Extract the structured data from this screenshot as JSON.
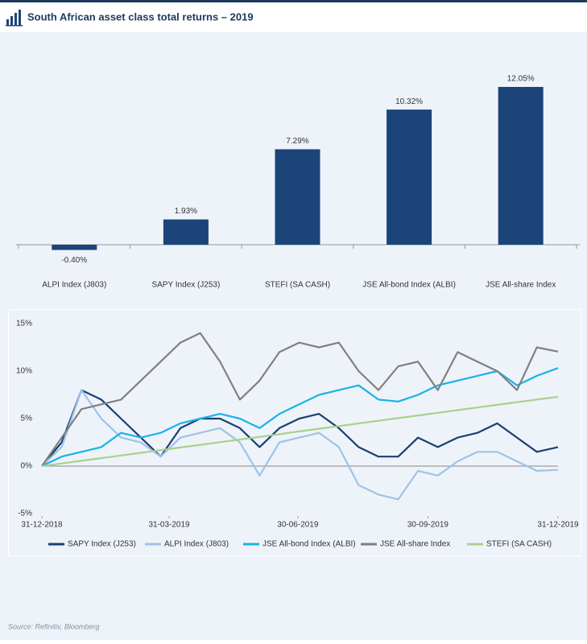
{
  "title": "South African asset class total returns – 2019",
  "chart_data": [
    {
      "type": "bar",
      "categories": [
        "ALPI Index (J803)",
        "SAPY Index (J253)",
        "STEFI (SA CASH)",
        "JSE All-bond Index (ALBI)",
        "JSE All-share Index"
      ],
      "values": [
        -0.4,
        1.93,
        7.29,
        10.32,
        12.05
      ],
      "value_labels": [
        "-0.40%",
        "1.93%",
        "7.29%",
        "10.32%",
        "12.05%"
      ],
      "color": "#1b4478"
    },
    {
      "type": "line",
      "x": [
        "2018-12-31",
        "2019-01-14",
        "2019-01-28",
        "2019-02-11",
        "2019-02-25",
        "2019-03-11",
        "2019-03-25",
        "2019-04-08",
        "2019-04-22",
        "2019-05-06",
        "2019-05-20",
        "2019-06-03",
        "2019-06-17",
        "2019-07-01",
        "2019-07-15",
        "2019-07-29",
        "2019-08-12",
        "2019-08-26",
        "2019-09-09",
        "2019-09-23",
        "2019-10-07",
        "2019-10-21",
        "2019-11-04",
        "2019-11-18",
        "2019-12-02",
        "2019-12-16",
        "2019-12-31"
      ],
      "xlim": [
        "2018-12-31",
        "2019-12-31"
      ],
      "xticks": [
        {
          "value": "2018-12-31",
          "label": "31-12-2018"
        },
        {
          "value": "2019-03-31",
          "label": "31-03-2019"
        },
        {
          "value": "2019-06-30",
          "label": "30-06-2019"
        },
        {
          "value": "2019-09-30",
          "label": "30-09-2019"
        },
        {
          "value": "2019-12-31",
          "label": "31-12-2019"
        }
      ],
      "ylim": [
        -5,
        15
      ],
      "yticks": [
        {
          "value": -5,
          "label": "-5%"
        },
        {
          "value": 0,
          "label": "0%"
        },
        {
          "value": 5,
          "label": "5%"
        },
        {
          "value": 10,
          "label": "10%"
        },
        {
          "value": 15,
          "label": "15%"
        }
      ],
      "series": [
        {
          "name": "SAPY Index (J253)",
          "color": "#1b3f73",
          "values": [
            0,
            2.5,
            8,
            7,
            5,
            3,
            1,
            4,
            5,
            5,
            4,
            2,
            4,
            5,
            5.5,
            4,
            2,
            1,
            1,
            3,
            2,
            3,
            3.5,
            4.5,
            3,
            1.5,
            2
          ]
        },
        {
          "name": "ALPI Index (J803)",
          "color": "#9fc3e6",
          "values": [
            0,
            2,
            8,
            5,
            3,
            2.5,
            1,
            3,
            3.5,
            4,
            2.5,
            -1,
            2.5,
            3,
            3.5,
            2,
            -2,
            -3,
            -3.5,
            -0.5,
            -1,
            0.5,
            1.5,
            1.5,
            0.5,
            -0.5,
            -0.4
          ]
        },
        {
          "name": "JSE All-bond Index (ALBI)",
          "color": "#19b2e8",
          "values": [
            0,
            1,
            1.5,
            2,
            3.5,
            3,
            3.5,
            4.5,
            5,
            5.5,
            5,
            4,
            5.5,
            6.5,
            7.5,
            8,
            8.5,
            7,
            6.8,
            7.5,
            8.5,
            9,
            9.5,
            10,
            8.5,
            9.5,
            10.32
          ]
        },
        {
          "name": "JSE All-share Index",
          "color": "#808080",
          "values": [
            0,
            3,
            6,
            6.5,
            7,
            9,
            11,
            13,
            14,
            11,
            7,
            9,
            12,
            13,
            12.5,
            13,
            10,
            8,
            10.5,
            11,
            8,
            12,
            11,
            10,
            8,
            12.5,
            12.05
          ]
        },
        {
          "name": "STEFI (SA CASH)",
          "color": "#a9d18e",
          "values": [
            0,
            0.28,
            0.56,
            0.84,
            1.12,
            1.4,
            1.68,
            1.96,
            2.24,
            2.52,
            2.8,
            3.08,
            3.36,
            3.65,
            3.93,
            4.21,
            4.49,
            4.77,
            5.05,
            5.33,
            5.61,
            5.89,
            6.17,
            6.45,
            6.73,
            7.01,
            7.29
          ]
        }
      ]
    }
  ],
  "source": "Source: Refinitiv, Bloomberg"
}
